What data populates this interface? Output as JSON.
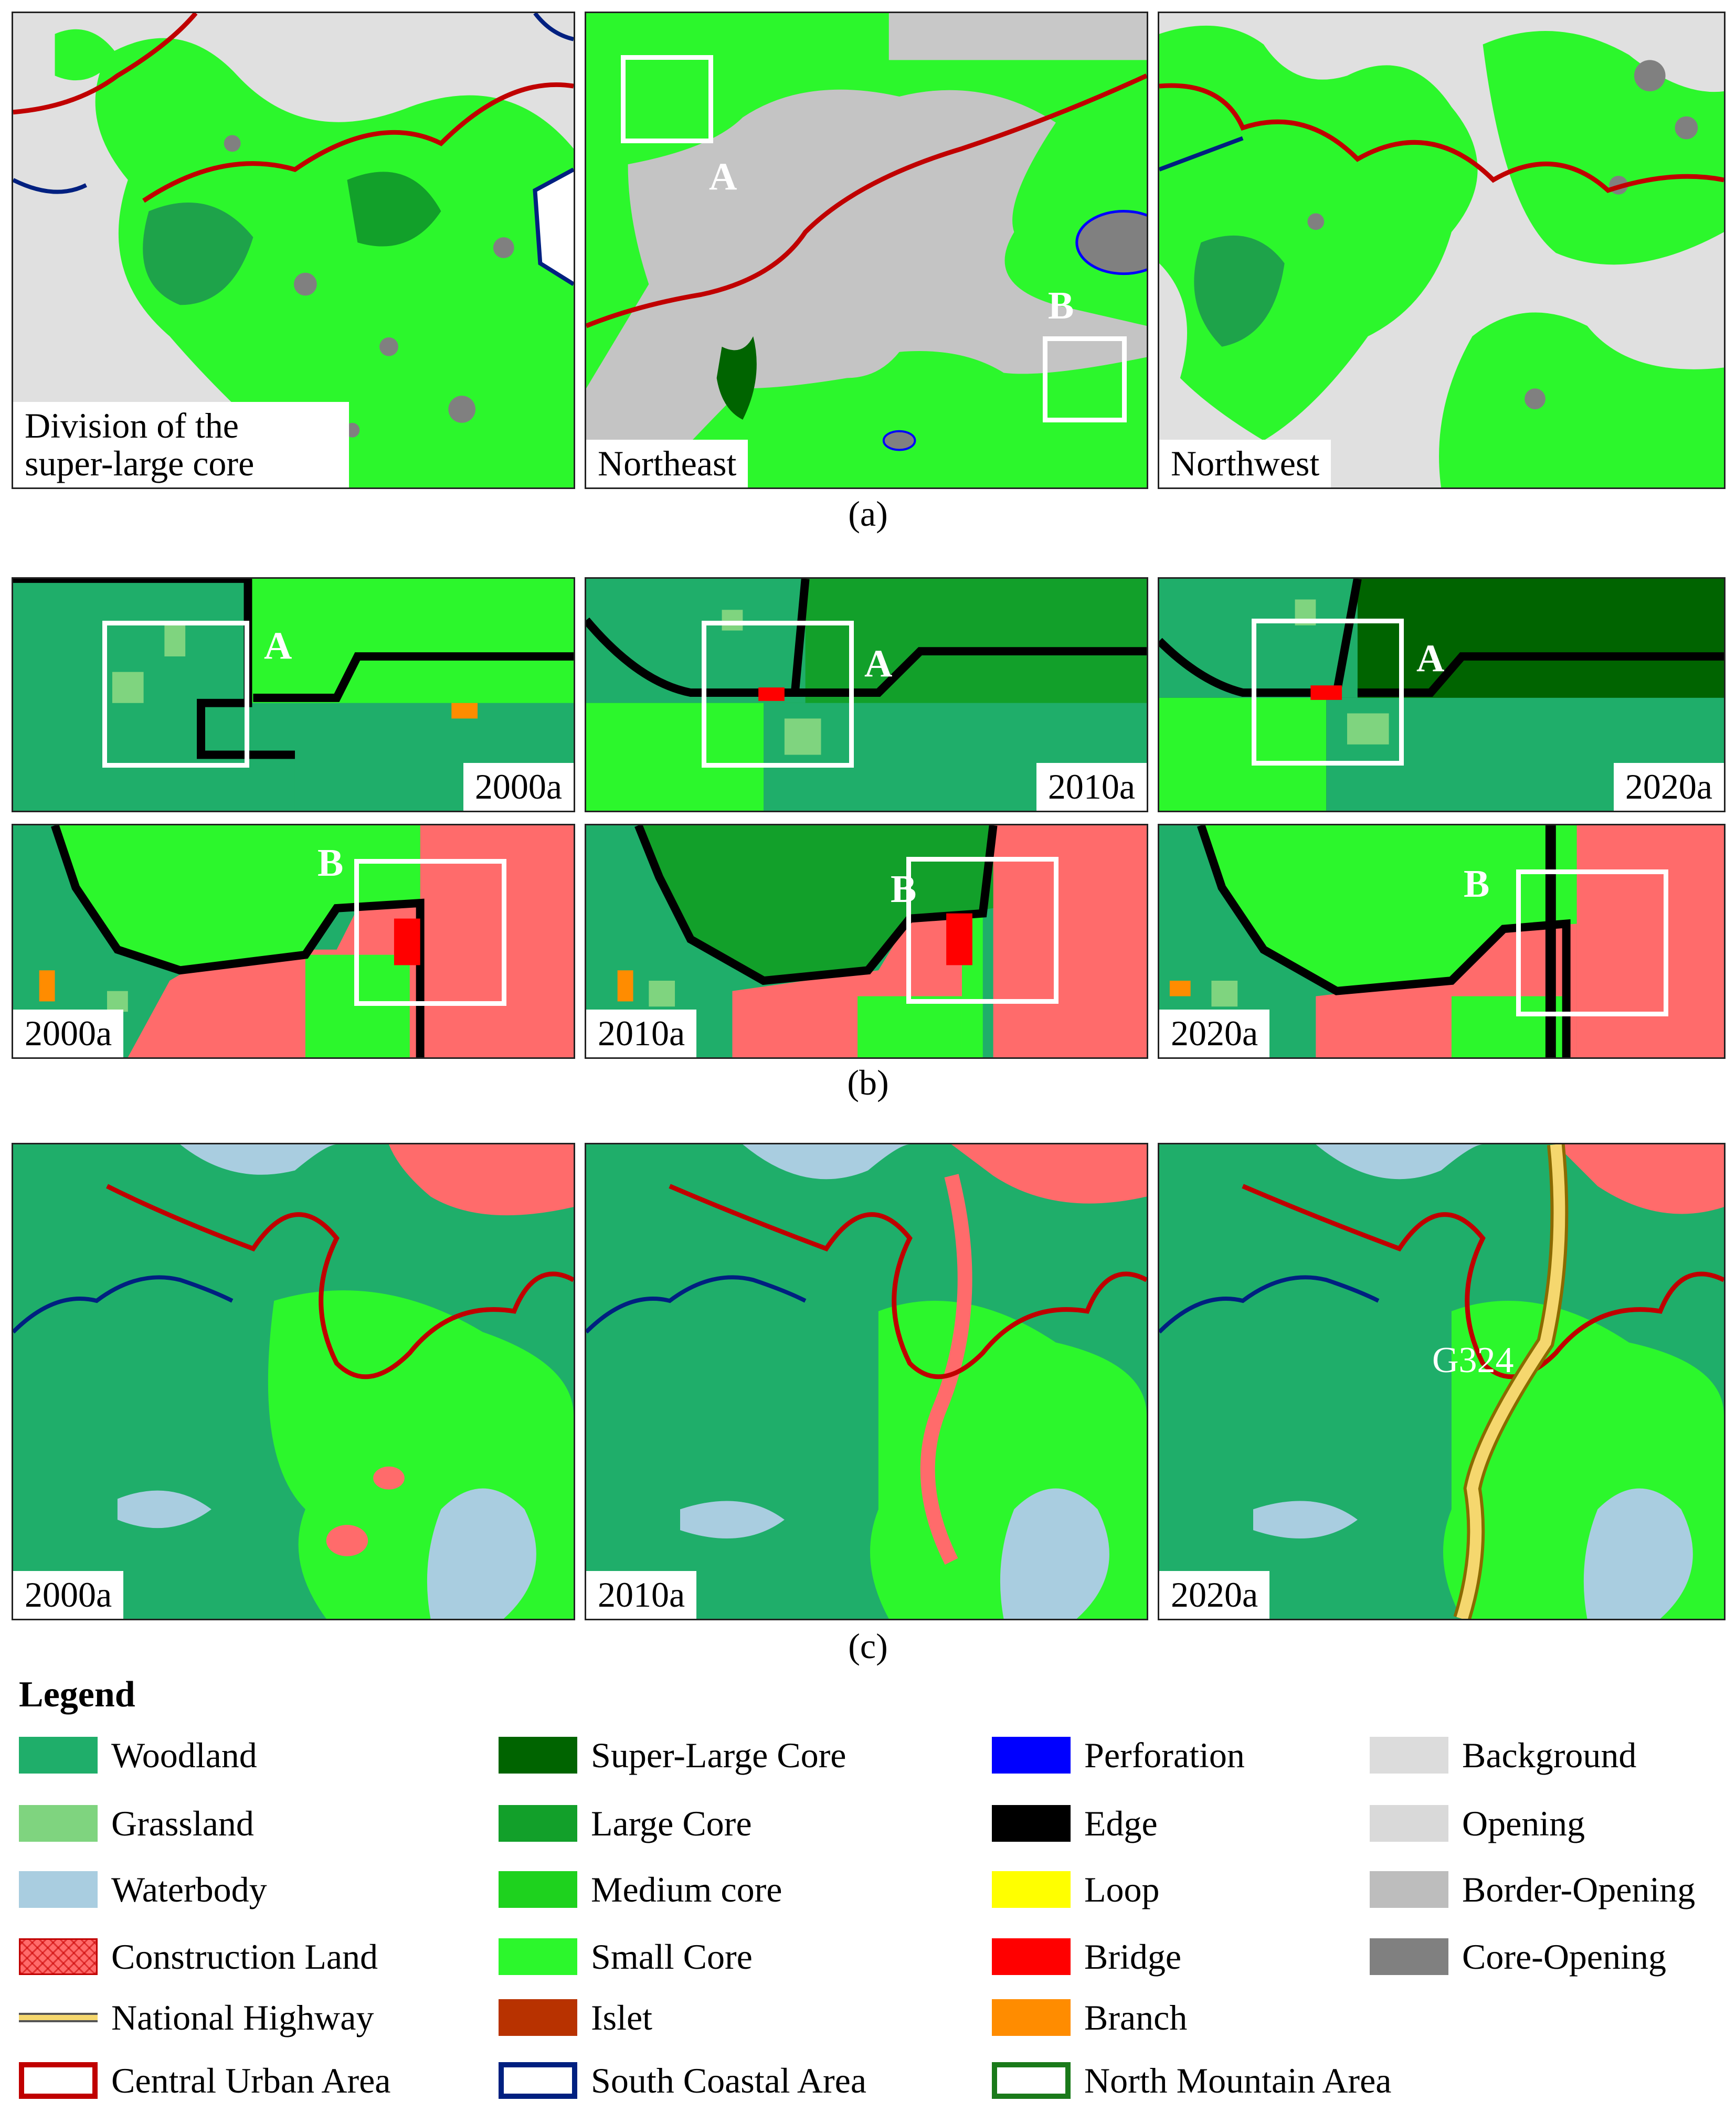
{
  "row_a": {
    "caption": "(a)",
    "panels": [
      {
        "label_line1": "Division of the",
        "label_line2": "super-large core"
      },
      {
        "label": "Northeast",
        "marks": [
          "A",
          "B"
        ]
      },
      {
        "label": "Northwest"
      }
    ]
  },
  "row_b": {
    "caption": "(b)",
    "top": [
      {
        "label": "2000a",
        "mark": "A"
      },
      {
        "label": "2010a",
        "mark": "A"
      },
      {
        "label": "2020a",
        "mark": "A"
      }
    ],
    "bottom": [
      {
        "label": "2000a",
        "mark": "B"
      },
      {
        "label": "2010a",
        "mark": "B"
      },
      {
        "label": "2020a",
        "mark": "B"
      }
    ]
  },
  "row_c": {
    "caption": "(c)",
    "panels": [
      {
        "label": "2000a"
      },
      {
        "label": "2010a"
      },
      {
        "label": "2020a",
        "road_label": "G324"
      }
    ]
  },
  "legend": {
    "title": "Legend",
    "columns": [
      [
        {
          "label": "Woodland",
          "color": "#1fae6a",
          "style": "fill"
        },
        {
          "label": "Grassland",
          "color": "#7fd47f",
          "style": "fill"
        },
        {
          "label": "Waterbody",
          "color": "#a9cde0",
          "style": "fill"
        },
        {
          "label": "Construction Land",
          "color": "#ff6b6b",
          "style": "hatch"
        },
        {
          "label": "National Highway",
          "color": "#f5d76e",
          "style": "line"
        },
        {
          "label": "Central Urban Area",
          "color": "#c00000",
          "style": "outline"
        }
      ],
      [
        {
          "label": "Super-Large Core",
          "color": "#006400",
          "style": "fill"
        },
        {
          "label": "Large Core",
          "color": "#12a02a",
          "style": "fill"
        },
        {
          "label": "Medium core",
          "color": "#1ed21e",
          "style": "fill"
        },
        {
          "label": "Small Core",
          "color": "#2cf72c",
          "style": "fill"
        },
        {
          "label": "Islet",
          "color": "#b83200",
          "style": "fill"
        },
        {
          "label": "South Coastal Area",
          "color": "#002080",
          "style": "outline"
        }
      ],
      [
        {
          "label": "Perforation",
          "color": "#0000ff",
          "style": "fill"
        },
        {
          "label": "Edge",
          "color": "#000000",
          "style": "fill"
        },
        {
          "label": "Loop",
          "color": "#ffff00",
          "style": "fill"
        },
        {
          "label": "Bridge",
          "color": "#ff0000",
          "style": "fill"
        },
        {
          "label": "Branch",
          "color": "#ff8c00",
          "style": "fill"
        },
        {
          "label": "North Mountain Area",
          "color": "#1a7a1a",
          "style": "outline"
        }
      ],
      [
        {
          "label": "Background",
          "color": "#dcdcdc",
          "style": "fill"
        },
        {
          "label": "Opening",
          "color": "#d9d9d9",
          "style": "fill"
        },
        {
          "label": "Border-Opening",
          "color": "#bdbdbd",
          "style": "fill"
        },
        {
          "label": "Core-Opening",
          "color": "#808080",
          "style": "fill"
        }
      ]
    ]
  }
}
